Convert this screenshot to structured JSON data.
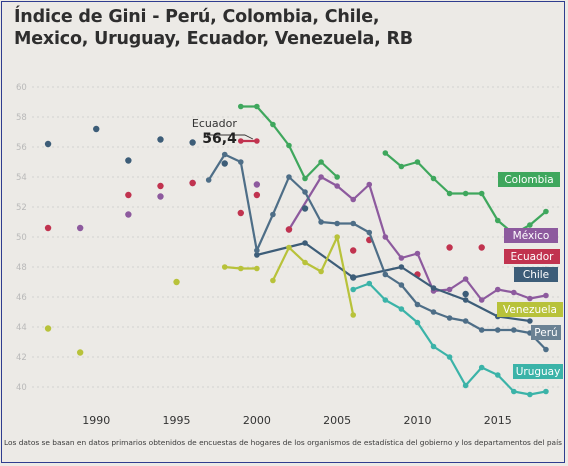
{
  "title_line1": "Índice de Gini - Perú, Colombia, Chile,",
  "title_line2": "Mexico, Uruguay, Ecuador, Venezuela, RB",
  "source": "Los datos se basan en datos primarios obtenidos de encuestas de hogares de los organismos de estadística del gobierno y los departamentos del país del Banco Mundial.",
  "annotation": {
    "name": "Ecuador",
    "value": "56,4",
    "x": 2000,
    "y": 56.4
  },
  "chart_data": {
    "type": "line",
    "xlim": [
      1986,
      2019
    ],
    "ylim": [
      39,
      61
    ],
    "x_ticks": [
      1990,
      1995,
      2000,
      2005,
      2010,
      2015
    ],
    "y_ticks": [
      60,
      58,
      56,
      54,
      52,
      50,
      48,
      46,
      44,
      42,
      40
    ],
    "y_tick_labels": [
      "60",
      "58",
      "56",
      "54",
      "52",
      "50",
      "48",
      "46",
      "44",
      "42",
      "40"
    ],
    "grid": "horizontal dashed",
    "series": [
      {
        "name": "Colombia",
        "color": "#3fa75d",
        "label_color": "#ffffff",
        "label_bg": "#3fa75d",
        "segments": [
          [
            [
              1999,
              58.7
            ],
            [
              2000,
              58.7
            ],
            [
              2001,
              57.5
            ],
            [
              2002,
              56.1
            ],
            [
              2003,
              53.9
            ],
            [
              2004,
              55.0
            ],
            [
              2005,
              54.0
            ]
          ],
          [
            [
              2008,
              55.6
            ],
            [
              2009,
              54.7
            ],
            [
              2010,
              55.0
            ],
            [
              2011,
              53.9
            ],
            [
              2012,
              52.9
            ],
            [
              2013,
              52.9
            ],
            [
              2014,
              52.9
            ],
            [
              2015,
              51.1
            ],
            [
              2016,
              50.2
            ],
            [
              2017,
              50.8
            ],
            [
              2018,
              51.7
            ]
          ]
        ],
        "points": []
      },
      {
        "name": "México",
        "color": "#8d5a9e",
        "label_color": "#ffffff",
        "label_bg": "#8d5a9e",
        "segments": [
          [
            [
              2002,
              50.5
            ],
            [
              2004,
              54.0
            ],
            [
              2005,
              53.4
            ],
            [
              2006,
              52.5
            ],
            [
              2007,
              53.5
            ],
            [
              2008,
              50.0
            ],
            [
              2009,
              48.6
            ],
            [
              2010,
              48.9
            ],
            [
              2011,
              46.4
            ],
            [
              2012,
              46.5
            ],
            [
              2013,
              47.2
            ],
            [
              2014,
              45.8
            ],
            [
              2015,
              46.5
            ],
            [
              2016,
              46.3
            ],
            [
              2017,
              45.9
            ],
            [
              2018,
              46.1
            ]
          ]
        ],
        "points": [
          [
            1989,
            50.6
          ],
          [
            1992,
            51.5
          ],
          [
            1994,
            52.7
          ],
          [
            1996,
            53.6
          ],
          [
            2000,
            53.5
          ],
          [
            2002,
            50.5
          ]
        ]
      },
      {
        "name": "Ecuador",
        "color": "#c1334f",
        "label_color": "#ffffff",
        "label_bg": "#c1334f",
        "segments": [
          [
            [
              1999,
              56.4
            ],
            [
              2000,
              56.4
            ]
          ]
        ],
        "points": [
          [
            1987,
            50.6
          ],
          [
            1992,
            52.8
          ],
          [
            1994,
            53.4
          ],
          [
            1996,
            53.6
          ],
          [
            1999,
            51.6
          ],
          [
            2000,
            52.8
          ],
          [
            2002,
            50.5
          ],
          [
            2006,
            49.1
          ],
          [
            2007,
            49.8
          ],
          [
            2010,
            47.5
          ],
          [
            2012,
            49.3
          ],
          [
            2014,
            49.3
          ],
          [
            2018,
            47.8
          ]
        ]
      },
      {
        "name": "Chile",
        "color": "#3d5d78",
        "label_color": "#ffffff",
        "label_bg": "#3d5d78",
        "segments": [
          [
            [
              2000,
              48.8
            ],
            [
              2003,
              49.6
            ],
            [
              2006,
              47.3
            ],
            [
              2009,
              48.0
            ],
            [
              2011,
              46.6
            ],
            [
              2013,
              45.8
            ],
            [
              2015,
              44.7
            ],
            [
              2017,
              44.4
            ]
          ]
        ],
        "points": [
          [
            1987,
            56.2
          ],
          [
            1990,
            57.2
          ],
          [
            1992,
            55.1
          ],
          [
            1994,
            56.5
          ],
          [
            1996,
            56.3
          ],
          [
            1998,
            54.9
          ],
          [
            2003,
            51.9
          ],
          [
            2006,
            47.3
          ],
          [
            2013,
            46.2
          ]
        ]
      },
      {
        "name": "Perú",
        "color": "#4e6e87",
        "label_color": "#ffffff",
        "label_bg": "#6b8294",
        "segments": [
          [
            [
              1997,
              53.8
            ],
            [
              1998,
              55.5
            ],
            [
              1999,
              55.0
            ],
            [
              2000,
              49.1
            ],
            [
              2001,
              51.5
            ],
            [
              2002,
              54.0
            ],
            [
              2003,
              53.0
            ],
            [
              2004,
              51.0
            ],
            [
              2005,
              50.9
            ],
            [
              2006,
              50.9
            ],
            [
              2007,
              50.3
            ],
            [
              2008,
              47.5
            ],
            [
              2009,
              46.8
            ],
            [
              2010,
              45.5
            ],
            [
              2011,
              45.0
            ],
            [
              2012,
              44.6
            ],
            [
              2013,
              44.4
            ],
            [
              2014,
              43.8
            ],
            [
              2015,
              43.8
            ],
            [
              2016,
              43.8
            ],
            [
              2017,
              43.6
            ],
            [
              2018,
              42.5
            ]
          ]
        ],
        "points": []
      },
      {
        "name": "Venezuela",
        "color": "#b8c23a",
        "label_color": "#ffffff",
        "label_bg": "#b8c23a",
        "segments": [
          [
            [
              1998,
              48.0
            ],
            [
              1999,
              47.9
            ],
            [
              2000,
              47.9
            ]
          ],
          [
            [
              2001,
              47.1
            ],
            [
              2002,
              49.3
            ],
            [
              2003,
              48.3
            ],
            [
              2004,
              47.7
            ],
            [
              2005,
              50.0
            ],
            [
              2006,
              44.8
            ]
          ]
        ],
        "points": [
          [
            1987,
            43.9
          ],
          [
            1989,
            42.3
          ],
          [
            1995,
            47.0
          ]
        ]
      },
      {
        "name": "Uruguay",
        "color": "#3bb3a8",
        "label_color": "#ffffff",
        "label_bg": "#3bb3a8",
        "segments": [
          [
            [
              2006,
              46.5
            ],
            [
              2007,
              46.9
            ],
            [
              2008,
              45.8
            ],
            [
              2009,
              45.2
            ],
            [
              2010,
              44.3
            ],
            [
              2011,
              42.7
            ],
            [
              2012,
              42.0
            ],
            [
              2013,
              40.1
            ],
            [
              2014,
              41.3
            ],
            [
              2015,
              40.8
            ],
            [
              2016,
              39.7
            ],
            [
              2017,
              39.5
            ],
            [
              2018,
              39.7
            ]
          ]
        ],
        "points": []
      }
    ]
  }
}
